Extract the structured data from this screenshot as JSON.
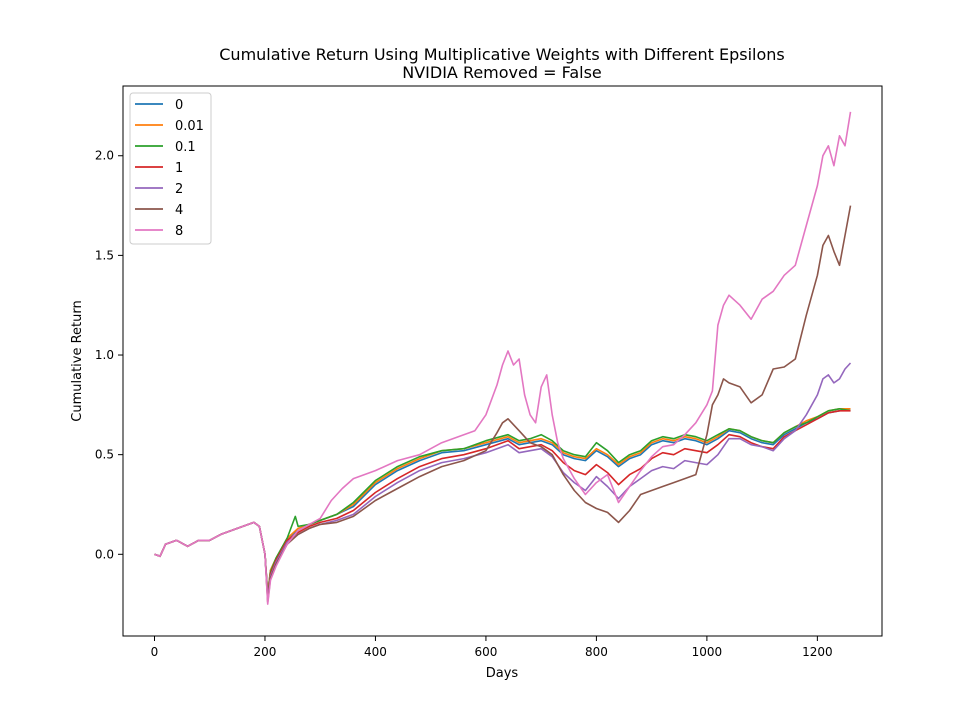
{
  "chart_data": {
    "type": "line",
    "title": "Cumulative Return Using Multiplicative Weights with Different Epsilons",
    "subtitle": "NVIDIA Removed = False",
    "xlabel": "Days",
    "ylabel": "Cumulative Return",
    "xlim": [
      -57,
      1317
    ],
    "ylim": [
      -0.41,
      2.35
    ],
    "xticks": [
      0,
      200,
      400,
      600,
      800,
      1000,
      1200
    ],
    "yticks": [
      0.0,
      0.5,
      1.0,
      1.5,
      2.0
    ],
    "xtick_labels": [
      "0",
      "200",
      "400",
      "600",
      "800",
      "1000",
      "1200"
    ],
    "ytick_labels": [
      "0.0",
      "0.5",
      "1.0",
      "1.5",
      "2.0"
    ],
    "grid": false,
    "legend_position": "upper-left",
    "series": [
      {
        "name": "0",
        "color": "#1f77b4",
        "x": [
          0,
          10,
          20,
          40,
          60,
          80,
          100,
          120,
          150,
          180,
          190,
          200,
          205,
          210,
          220,
          240,
          260,
          280,
          300,
          330,
          360,
          400,
          440,
          480,
          520,
          560,
          600,
          640,
          660,
          680,
          700,
          720,
          740,
          760,
          780,
          800,
          820,
          840,
          860,
          880,
          900,
          920,
          940,
          960,
          980,
          1000,
          1020,
          1040,
          1060,
          1080,
          1100,
          1120,
          1140,
          1160,
          1180,
          1200,
          1220,
          1240,
          1260
        ],
        "y": [
          0.0,
          -0.01,
          0.05,
          0.07,
          0.04,
          0.07,
          0.07,
          0.1,
          0.13,
          0.16,
          0.14,
          0.0,
          -0.2,
          -0.08,
          -0.02,
          0.08,
          0.12,
          0.15,
          0.17,
          0.2,
          0.24,
          0.35,
          0.42,
          0.47,
          0.51,
          0.52,
          0.55,
          0.58,
          0.55,
          0.56,
          0.57,
          0.55,
          0.5,
          0.48,
          0.47,
          0.52,
          0.49,
          0.44,
          0.48,
          0.5,
          0.55,
          0.57,
          0.56,
          0.58,
          0.57,
          0.55,
          0.58,
          0.62,
          0.61,
          0.58,
          0.56,
          0.55,
          0.6,
          0.63,
          0.66,
          0.68,
          0.71,
          0.72,
          0.73
        ]
      },
      {
        "name": "0.01",
        "color": "#ff7f0e",
        "x": [
          0,
          10,
          20,
          40,
          60,
          80,
          100,
          120,
          150,
          180,
          190,
          200,
          205,
          210,
          220,
          240,
          260,
          280,
          300,
          330,
          360,
          400,
          440,
          480,
          520,
          560,
          600,
          640,
          660,
          680,
          700,
          720,
          740,
          760,
          780,
          800,
          820,
          840,
          860,
          880,
          900,
          920,
          940,
          960,
          980,
          1000,
          1020,
          1040,
          1060,
          1080,
          1100,
          1120,
          1140,
          1160,
          1180,
          1200,
          1220,
          1240,
          1260
        ],
        "y": [
          0.0,
          -0.01,
          0.05,
          0.07,
          0.04,
          0.07,
          0.07,
          0.1,
          0.13,
          0.16,
          0.14,
          0.0,
          -0.2,
          -0.08,
          -0.02,
          0.08,
          0.13,
          0.15,
          0.17,
          0.2,
          0.25,
          0.36,
          0.43,
          0.48,
          0.52,
          0.53,
          0.56,
          0.59,
          0.56,
          0.57,
          0.58,
          0.56,
          0.51,
          0.49,
          0.48,
          0.53,
          0.5,
          0.45,
          0.49,
          0.51,
          0.56,
          0.58,
          0.57,
          0.59,
          0.58,
          0.56,
          0.59,
          0.63,
          0.62,
          0.59,
          0.57,
          0.56,
          0.61,
          0.64,
          0.67,
          0.69,
          0.72,
          0.73,
          0.73
        ]
      },
      {
        "name": "0.1",
        "color": "#2ca02c",
        "x": [
          0,
          10,
          20,
          40,
          60,
          80,
          100,
          120,
          150,
          180,
          190,
          200,
          205,
          210,
          220,
          240,
          255,
          260,
          280,
          300,
          330,
          360,
          400,
          440,
          480,
          520,
          560,
          600,
          640,
          660,
          680,
          700,
          720,
          740,
          760,
          780,
          800,
          820,
          840,
          860,
          880,
          900,
          920,
          940,
          960,
          980,
          1000,
          1020,
          1040,
          1060,
          1080,
          1100,
          1120,
          1140,
          1160,
          1180,
          1200,
          1220,
          1240,
          1260
        ],
        "y": [
          0.0,
          -0.01,
          0.05,
          0.07,
          0.04,
          0.07,
          0.07,
          0.1,
          0.13,
          0.16,
          0.14,
          0.0,
          -0.21,
          -0.09,
          -0.02,
          0.08,
          0.19,
          0.14,
          0.15,
          0.17,
          0.2,
          0.26,
          0.37,
          0.44,
          0.49,
          0.52,
          0.53,
          0.57,
          0.6,
          0.57,
          0.58,
          0.6,
          0.57,
          0.52,
          0.5,
          0.49,
          0.56,
          0.52,
          0.46,
          0.5,
          0.52,
          0.57,
          0.59,
          0.58,
          0.6,
          0.59,
          0.57,
          0.6,
          0.63,
          0.62,
          0.59,
          0.57,
          0.56,
          0.61,
          0.64,
          0.66,
          0.69,
          0.72,
          0.73,
          0.72
        ]
      },
      {
        "name": "1",
        "color": "#d62728",
        "x": [
          0,
          10,
          20,
          40,
          60,
          80,
          100,
          120,
          150,
          180,
          190,
          200,
          205,
          210,
          220,
          240,
          260,
          280,
          300,
          330,
          360,
          400,
          440,
          480,
          520,
          560,
          600,
          640,
          660,
          680,
          700,
          720,
          740,
          760,
          780,
          800,
          820,
          840,
          860,
          880,
          900,
          920,
          940,
          960,
          980,
          1000,
          1020,
          1040,
          1060,
          1080,
          1100,
          1120,
          1140,
          1160,
          1180,
          1200,
          1220,
          1240,
          1260
        ],
        "y": [
          0.0,
          -0.01,
          0.05,
          0.07,
          0.04,
          0.07,
          0.07,
          0.1,
          0.13,
          0.16,
          0.14,
          0.0,
          -0.22,
          -0.1,
          -0.03,
          0.07,
          0.11,
          0.14,
          0.16,
          0.18,
          0.22,
          0.31,
          0.38,
          0.44,
          0.48,
          0.5,
          0.53,
          0.57,
          0.53,
          0.54,
          0.55,
          0.52,
          0.46,
          0.42,
          0.4,
          0.45,
          0.41,
          0.35,
          0.4,
          0.43,
          0.48,
          0.51,
          0.5,
          0.53,
          0.52,
          0.51,
          0.55,
          0.6,
          0.59,
          0.56,
          0.54,
          0.53,
          0.59,
          0.62,
          0.65,
          0.68,
          0.71,
          0.72,
          0.72
        ]
      },
      {
        "name": "2",
        "color": "#9467bd",
        "x": [
          0,
          10,
          20,
          40,
          60,
          80,
          100,
          120,
          150,
          180,
          190,
          200,
          205,
          210,
          220,
          240,
          260,
          280,
          300,
          330,
          360,
          400,
          440,
          480,
          520,
          560,
          600,
          640,
          660,
          680,
          700,
          720,
          740,
          760,
          780,
          800,
          820,
          840,
          860,
          880,
          900,
          920,
          940,
          960,
          980,
          1000,
          1020,
          1040,
          1060,
          1080,
          1100,
          1120,
          1140,
          1160,
          1180,
          1200,
          1210,
          1220,
          1230,
          1240,
          1250,
          1260
        ],
        "y": [
          0.0,
          -0.01,
          0.05,
          0.07,
          0.04,
          0.07,
          0.07,
          0.1,
          0.13,
          0.16,
          0.14,
          0.0,
          -0.23,
          -0.11,
          -0.04,
          0.06,
          0.1,
          0.13,
          0.15,
          0.17,
          0.2,
          0.29,
          0.36,
          0.42,
          0.46,
          0.48,
          0.51,
          0.55,
          0.51,
          0.52,
          0.53,
          0.49,
          0.41,
          0.36,
          0.32,
          0.39,
          0.34,
          0.28,
          0.34,
          0.38,
          0.42,
          0.44,
          0.43,
          0.47,
          0.46,
          0.45,
          0.5,
          0.58,
          0.58,
          0.55,
          0.54,
          0.52,
          0.58,
          0.62,
          0.7,
          0.8,
          0.88,
          0.9,
          0.86,
          0.88,
          0.93,
          0.96
        ]
      },
      {
        "name": "4",
        "color": "#8c564b",
        "x": [
          0,
          10,
          20,
          40,
          60,
          80,
          100,
          120,
          150,
          180,
          190,
          200,
          205,
          210,
          220,
          240,
          260,
          280,
          300,
          330,
          360,
          400,
          440,
          480,
          520,
          560,
          600,
          620,
          630,
          640,
          660,
          680,
          700,
          720,
          740,
          760,
          780,
          800,
          820,
          840,
          860,
          880,
          900,
          920,
          940,
          960,
          980,
          1000,
          1010,
          1020,
          1030,
          1040,
          1060,
          1080,
          1100,
          1120,
          1140,
          1160,
          1180,
          1200,
          1210,
          1220,
          1230,
          1240,
          1250,
          1260
        ],
        "y": [
          0.0,
          -0.01,
          0.05,
          0.07,
          0.04,
          0.07,
          0.07,
          0.1,
          0.13,
          0.16,
          0.14,
          0.0,
          -0.24,
          -0.12,
          -0.05,
          0.05,
          0.1,
          0.13,
          0.15,
          0.16,
          0.19,
          0.27,
          0.33,
          0.39,
          0.44,
          0.47,
          0.52,
          0.61,
          0.66,
          0.68,
          0.62,
          0.56,
          0.54,
          0.5,
          0.4,
          0.32,
          0.26,
          0.23,
          0.21,
          0.16,
          0.22,
          0.3,
          0.32,
          0.34,
          0.36,
          0.38,
          0.4,
          0.6,
          0.75,
          0.8,
          0.88,
          0.86,
          0.84,
          0.76,
          0.8,
          0.93,
          0.94,
          0.98,
          1.2,
          1.4,
          1.55,
          1.6,
          1.52,
          1.45,
          1.6,
          1.75
        ]
      },
      {
        "name": "8",
        "color": "#e377c2",
        "x": [
          0,
          10,
          20,
          40,
          60,
          80,
          100,
          120,
          150,
          180,
          190,
          200,
          205,
          210,
          220,
          240,
          260,
          280,
          300,
          320,
          340,
          360,
          400,
          440,
          480,
          520,
          560,
          580,
          600,
          620,
          630,
          640,
          650,
          660,
          670,
          680,
          690,
          700,
          710,
          720,
          730,
          740,
          760,
          780,
          800,
          820,
          840,
          860,
          880,
          900,
          920,
          940,
          960,
          980,
          1000,
          1010,
          1020,
          1030,
          1040,
          1060,
          1080,
          1100,
          1120,
          1140,
          1160,
          1180,
          1200,
          1210,
          1220,
          1230,
          1240,
          1250,
          1260
        ],
        "y": [
          0.0,
          -0.01,
          0.05,
          0.07,
          0.04,
          0.07,
          0.07,
          0.1,
          0.13,
          0.16,
          0.14,
          0.0,
          -0.25,
          -0.13,
          -0.06,
          0.05,
          0.12,
          0.15,
          0.18,
          0.27,
          0.33,
          0.38,
          0.42,
          0.47,
          0.5,
          0.56,
          0.6,
          0.62,
          0.7,
          0.85,
          0.95,
          1.02,
          0.95,
          0.98,
          0.8,
          0.7,
          0.66,
          0.84,
          0.9,
          0.7,
          0.56,
          0.48,
          0.38,
          0.3,
          0.36,
          0.4,
          0.26,
          0.34,
          0.42,
          0.49,
          0.54,
          0.55,
          0.6,
          0.66,
          0.75,
          0.82,
          1.15,
          1.25,
          1.3,
          1.25,
          1.18,
          1.28,
          1.32,
          1.4,
          1.45,
          1.65,
          1.85,
          2.0,
          2.05,
          1.95,
          2.1,
          2.05,
          2.22
        ]
      }
    ]
  }
}
